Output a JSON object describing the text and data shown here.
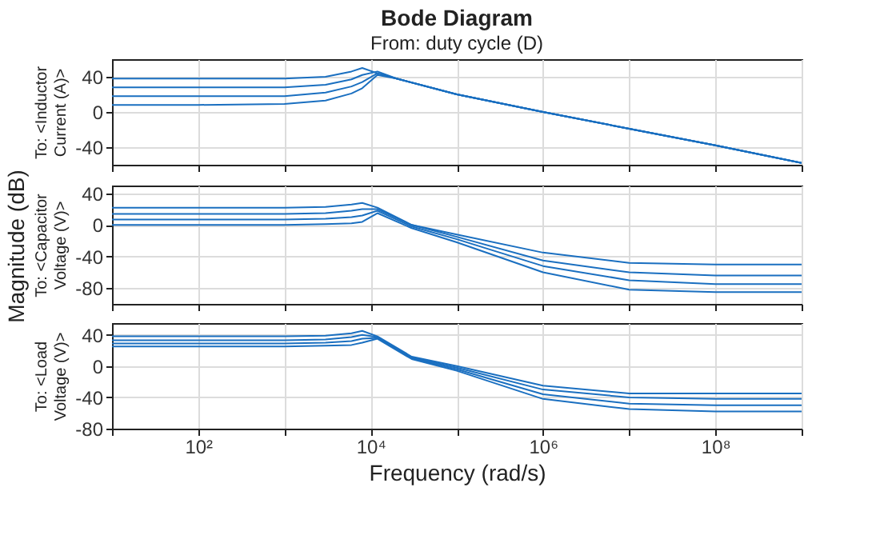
{
  "chart_data": [
    {
      "type": "line",
      "title": "Bode Diagram",
      "subtitle": "From: duty cycle (D)",
      "ylabel": "To: <Inductor Current (A)>",
      "annotations": [
        "Magnitude (dB)"
      ],
      "log": "x",
      "grid": true,
      "tick_labels": "y",
      "x": [
        10,
        100,
        1000,
        3000,
        6000,
        8000,
        12000,
        20000,
        100000,
        1000000,
        10000000,
        100000000,
        1000000000
      ],
      "xlim": [
        10,
        1000000000
      ],
      "xticks": [
        {
          "value": 10,
          "label": null
        },
        {
          "value": 100,
          "label": null
        },
        {
          "value": 1000,
          "label": null
        },
        {
          "value": 10000,
          "label": null
        },
        {
          "value": 100000,
          "label": null
        },
        {
          "value": 1000000,
          "label": null
        },
        {
          "value": 10000000,
          "label": null
        },
        {
          "value": 100000000,
          "label": null
        },
        {
          "value": 1000000000,
          "label": null
        }
      ],
      "ylim": [
        -60,
        60
      ],
      "yticks": [
        -40,
        0,
        40
      ],
      "series": [
        {
          "color": "#1a6fc0",
          "values": [
            38,
            38,
            38,
            40,
            46,
            50,
            44,
            38,
            20,
            0,
            -19,
            -38,
            -58
          ]
        },
        {
          "color": "#1a6fc0",
          "values": [
            28,
            28,
            28,
            31,
            37,
            42,
            46,
            38,
            20,
            0,
            -19,
            -38,
            -58
          ]
        },
        {
          "color": "#1a6fc0",
          "values": [
            18,
            18,
            18,
            22,
            29,
            34,
            44,
            38,
            20,
            0,
            -19,
            -38,
            -58
          ]
        },
        {
          "color": "#1a6fc0",
          "values": [
            8,
            8,
            9,
            13,
            21,
            27,
            42,
            38,
            20,
            0,
            -19,
            -38,
            -58
          ]
        }
      ]
    },
    {
      "type": "line",
      "ylabel": "To: <Capacitor Voltage (V)>",
      "log": "x",
      "grid": true,
      "tick_labels": "y",
      "x": [
        10,
        100,
        1000,
        3000,
        6000,
        8000,
        12000,
        30000,
        100000,
        1000000,
        10000000,
        100000000,
        1000000000
      ],
      "xlim": [
        10,
        1000000000
      ],
      "xticks": [
        {
          "value": 10,
          "label": null
        },
        {
          "value": 100,
          "label": null
        },
        {
          "value": 1000,
          "label": null
        },
        {
          "value": 10000,
          "label": null
        },
        {
          "value": 100000,
          "label": null
        },
        {
          "value": 1000000,
          "label": null
        },
        {
          "value": 10000000,
          "label": null
        },
        {
          "value": 100000000,
          "label": null
        },
        {
          "value": 1000000000,
          "label": null
        }
      ],
      "ylim": [
        -100,
        50
      ],
      "yticks": [
        -80,
        -40,
        0,
        40
      ],
      "series": [
        {
          "color": "#1a6fc0",
          "values": [
            22,
            22,
            22,
            23,
            26,
            28,
            22,
            0,
            -12,
            -35,
            -48,
            -50,
            -50
          ]
        },
        {
          "color": "#1a6fc0",
          "values": [
            14,
            14,
            14,
            15,
            18,
            20,
            20,
            0,
            -15,
            -45,
            -60,
            -64,
            -64
          ]
        },
        {
          "color": "#1a6fc0",
          "values": [
            7,
            7,
            7,
            8,
            10,
            12,
            18,
            -2,
            -18,
            -52,
            -70,
            -75,
            -75
          ]
        },
        {
          "color": "#1a6fc0",
          "values": [
            0,
            0,
            0,
            1,
            2,
            4,
            15,
            -4,
            -22,
            -60,
            -82,
            -85,
            -85
          ]
        }
      ]
    },
    {
      "type": "line",
      "ylabel": "To: <Load Voltage (V)>",
      "xlabel": "Frequency (rad/s)",
      "log": "x",
      "grid": true,
      "x": [
        10,
        100,
        1000,
        3000,
        6000,
        8000,
        12000,
        30000,
        100000,
        1000000,
        10000000,
        100000000,
        1000000000
      ],
      "xlim": [
        10,
        1000000000
      ],
      "xticks": [
        {
          "value": 10,
          "label": null
        },
        {
          "value": 100,
          "label": "10²"
        },
        {
          "value": 1000,
          "label": null
        },
        {
          "value": 10000,
          "label": "10⁴"
        },
        {
          "value": 100000,
          "label": null
        },
        {
          "value": 1000000,
          "label": "10⁶"
        },
        {
          "value": 10000000,
          "label": null
        },
        {
          "value": 100000000,
          "label": "10⁸"
        },
        {
          "value": 1000000000,
          "label": null
        }
      ],
      "ylim": [
        -80,
        55
      ],
      "yticks": [
        -80,
        -40,
        0,
        40
      ],
      "series": [
        {
          "color": "#1a6fc0",
          "values": [
            38,
            38,
            38,
            39,
            42,
            45,
            38,
            12,
            0,
            -25,
            -35,
            -35,
            -35
          ]
        },
        {
          "color": "#1a6fc0",
          "values": [
            33,
            33,
            33,
            34,
            37,
            40,
            37,
            11,
            -2,
            -30,
            -40,
            -42,
            -42
          ]
        },
        {
          "color": "#1a6fc0",
          "values": [
            29,
            29,
            29,
            30,
            32,
            35,
            36,
            10,
            -4,
            -36,
            -48,
            -50,
            -50
          ]
        },
        {
          "color": "#1a6fc0",
          "values": [
            25,
            25,
            25,
            26,
            27,
            30,
            35,
            9,
            -6,
            -42,
            -55,
            -58,
            -58
          ]
        }
      ]
    }
  ]
}
